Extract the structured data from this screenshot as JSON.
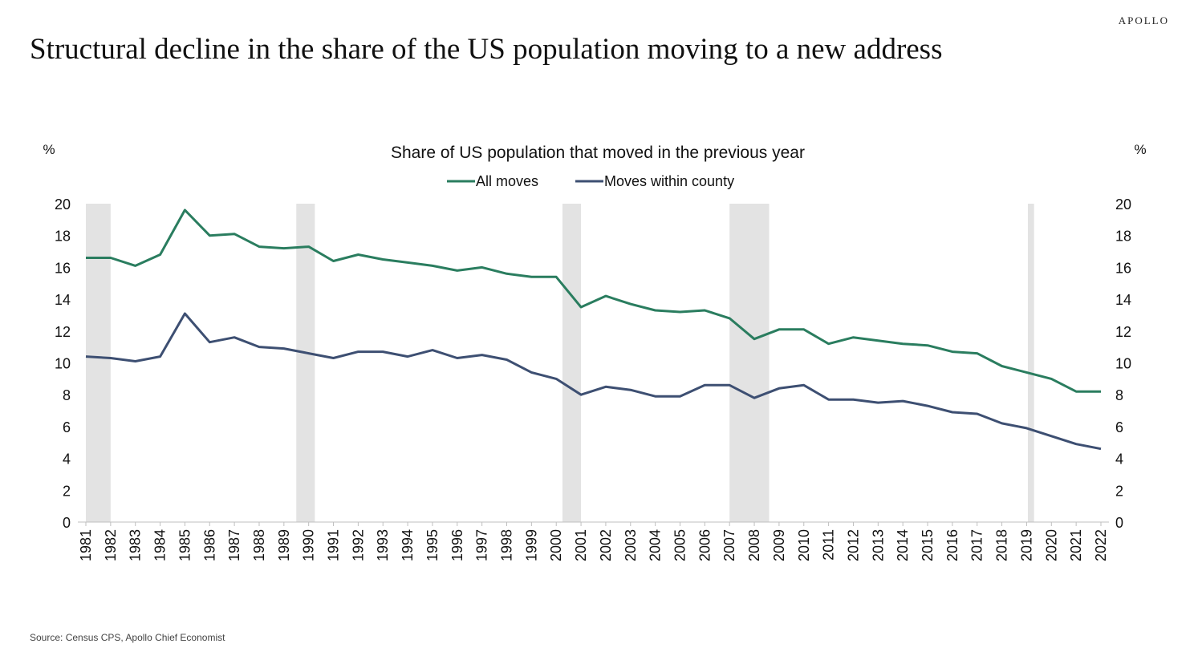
{
  "brand": "APOLLO",
  "headline": "Structural decline in the share of the US population moving to a new address",
  "source": "Source: Census CPS, Apollo Chief Economist",
  "chart_data": {
    "type": "line",
    "title": "Share of US population that moved in the previous year",
    "ylabel_left": "%",
    "ylabel_right": "%",
    "ylim": [
      0,
      20
    ],
    "yticks": [
      0,
      2,
      4,
      6,
      8,
      10,
      12,
      14,
      16,
      18,
      20
    ],
    "grid": false,
    "legend_position": "top-center",
    "x": [
      "1981",
      "1982",
      "1983",
      "1984",
      "1985",
      "1986",
      "1987",
      "1988",
      "1989",
      "1990",
      "1991",
      "1992",
      "1993",
      "1994",
      "1995",
      "1996",
      "1997",
      "1998",
      "1999",
      "2000",
      "2001",
      "2002",
      "2003",
      "2004",
      "2005",
      "2006",
      "2007",
      "2008",
      "2009",
      "2010",
      "2011",
      "2012",
      "2013",
      "2014",
      "2015",
      "2016",
      "2017",
      "2018",
      "2019",
      "2020",
      "2021",
      "2022"
    ],
    "series": [
      {
        "name": "All moves",
        "color": "#2a7d5f",
        "values": [
          16.6,
          16.6,
          16.1,
          16.8,
          19.6,
          18.0,
          18.1,
          17.3,
          17.2,
          17.3,
          16.4,
          16.8,
          16.5,
          16.3,
          16.1,
          15.8,
          16.0,
          15.6,
          15.4,
          15.4,
          13.5,
          14.2,
          13.7,
          13.3,
          13.2,
          13.3,
          12.8,
          11.5,
          12.1,
          12.1,
          11.2,
          11.6,
          11.4,
          11.2,
          11.1,
          10.7,
          10.6,
          9.8,
          9.4,
          9.0,
          8.2,
          8.2
        ]
      },
      {
        "name": "Moves within county",
        "color": "#3d4f72",
        "values": [
          10.4,
          10.3,
          10.1,
          10.4,
          13.1,
          11.3,
          11.6,
          11.0,
          10.9,
          10.6,
          10.3,
          10.7,
          10.7,
          10.4,
          10.8,
          10.3,
          10.5,
          10.2,
          9.4,
          9.0,
          8.0,
          8.5,
          8.3,
          7.9,
          7.9,
          8.6,
          8.6,
          7.8,
          8.4,
          8.6,
          7.7,
          7.7,
          7.5,
          7.6,
          7.3,
          6.9,
          6.8,
          6.2,
          5.9,
          5.4,
          4.9,
          4.6
        ]
      }
    ],
    "recession_bands_color": "#e3e3e3",
    "recession_bands": [
      {
        "start": 1981.0,
        "end": 1982.0
      },
      {
        "start": 1989.5,
        "end": 1990.25
      },
      {
        "start": 2000.25,
        "end": 2001.0
      },
      {
        "start": 2007.0,
        "end": 2008.6
      },
      {
        "start": 2019.05,
        "end": 2019.3
      }
    ]
  }
}
